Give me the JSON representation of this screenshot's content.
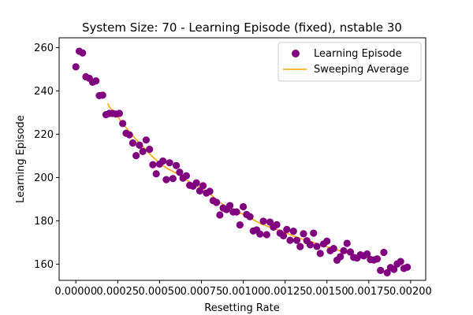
{
  "chart_data": {
    "type": "scatter",
    "title": "System Size: 70 - Learning Episode (fixed), nstable 30",
    "xlabel": "Resetting Rate",
    "ylabel": "Learning Episode",
    "xlim": [
      -0.0001,
      0.00209
    ],
    "ylim": [
      152.5,
      264.5
    ],
    "x_ticks": [
      0.0,
      0.00025,
      0.0005,
      0.00075,
      0.001,
      0.00125,
      0.0015,
      0.00175,
      0.002
    ],
    "x_tick_labels": [
      "0.00000",
      "0.00025",
      "0.00050",
      "0.00075",
      "0.00100",
      "0.00125",
      "0.00150",
      "0.00175",
      "0.00200"
    ],
    "y_ticks": [
      160,
      180,
      200,
      220,
      240,
      260
    ],
    "y_tick_labels": [
      "160",
      "180",
      "200",
      "220",
      "240",
      "260"
    ],
    "grid": false,
    "legend_position": "top-right",
    "series": [
      {
        "name": "Learning Episode",
        "kind": "scatter",
        "color": "#800080",
        "points": [
          [
            0.0,
            251.1
          ],
          [
            2e-05,
            258.3
          ],
          [
            4e-05,
            257.5
          ],
          [
            6e-05,
            246.5
          ],
          [
            8e-05,
            245.8
          ],
          [
            0.0001,
            244.0
          ],
          [
            0.00012,
            244.6
          ],
          [
            0.00014,
            237.8
          ],
          [
            0.00016,
            238.0
          ],
          [
            0.00018,
            229.0
          ],
          [
            0.0002,
            229.6
          ],
          [
            0.00022,
            229.6
          ],
          [
            0.00024,
            229.3
          ],
          [
            0.00026,
            229.6
          ],
          [
            0.00028,
            224.9
          ],
          [
            0.0003,
            220.4
          ],
          [
            0.00032,
            219.7
          ],
          [
            0.00034,
            215.9
          ],
          [
            0.00036,
            210.1
          ],
          [
            0.00038,
            214.9
          ],
          [
            0.0004,
            212.0
          ],
          [
            0.00042,
            217.3
          ],
          [
            0.00044,
            213.0
          ],
          [
            0.00046,
            205.9
          ],
          [
            0.00048,
            201.7
          ],
          [
            0.0005,
            206.2
          ],
          [
            0.00052,
            207.6
          ],
          [
            0.00054,
            199.0
          ],
          [
            0.00056,
            206.8
          ],
          [
            0.00058,
            199.5
          ],
          [
            0.0006,
            205.5
          ],
          [
            0.00062,
            202.4
          ],
          [
            0.00064,
            199.7
          ],
          [
            0.00066,
            200.8
          ],
          [
            0.00068,
            196.4
          ],
          [
            0.0007,
            196.0
          ],
          [
            0.00072,
            197.5
          ],
          [
            0.00074,
            193.8
          ],
          [
            0.00076,
            196.2
          ],
          [
            0.00078,
            192.8
          ],
          [
            0.0008,
            193.6
          ],
          [
            0.00082,
            189.3
          ],
          [
            0.00084,
            188.5
          ],
          [
            0.00086,
            182.7
          ],
          [
            0.00088,
            185.9
          ],
          [
            0.0009,
            185.2
          ],
          [
            0.00092,
            187.0
          ],
          [
            0.00094,
            184.1
          ],
          [
            0.00096,
            184.1
          ],
          [
            0.00098,
            178.1
          ],
          [
            0.001,
            186.5
          ],
          [
            0.00102,
            182.9
          ],
          [
            0.00104,
            181.9
          ],
          [
            0.00106,
            175.3
          ],
          [
            0.00108,
            175.8
          ],
          [
            0.0011,
            173.9
          ],
          [
            0.00112,
            179.8
          ],
          [
            0.00114,
            173.6
          ],
          [
            0.00116,
            179.4
          ],
          [
            0.00118,
            177.1
          ],
          [
            0.0012,
            178.2
          ],
          [
            0.00122,
            174.3
          ],
          [
            0.00124,
            173.1
          ],
          [
            0.00126,
            176.0
          ],
          [
            0.00128,
            171.0
          ],
          [
            0.0013,
            175.2
          ],
          [
            0.00132,
            171.0
          ],
          [
            0.00134,
            168.1
          ],
          [
            0.00136,
            174.0
          ],
          [
            0.00138,
            170.8
          ],
          [
            0.0014,
            168.9
          ],
          [
            0.00142,
            174.3
          ],
          [
            0.00144,
            168.2
          ],
          [
            0.00146,
            164.9
          ],
          [
            0.00148,
            169.3
          ],
          [
            0.0015,
            170.6
          ],
          [
            0.00152,
            166.2
          ],
          [
            0.00154,
            167.2
          ],
          [
            0.00156,
            161.8
          ],
          [
            0.00158,
            163.4
          ],
          [
            0.0016,
            166.2
          ],
          [
            0.00162,
            169.6
          ],
          [
            0.00164,
            165.6
          ],
          [
            0.00166,
            163.1
          ],
          [
            0.00168,
            162.8
          ],
          [
            0.0017,
            164.3
          ],
          [
            0.00172,
            163.8
          ],
          [
            0.00174,
            164.7
          ],
          [
            0.00176,
            162.1
          ],
          [
            0.00178,
            161.9
          ],
          [
            0.0018,
            162.4
          ],
          [
            0.00182,
            157.1
          ],
          [
            0.00184,
            165.4
          ],
          [
            0.00186,
            156.0
          ],
          [
            0.00188,
            158.4
          ],
          [
            0.0019,
            157.6
          ],
          [
            0.00192,
            160.1
          ],
          [
            0.00194,
            161.2
          ],
          [
            0.00196,
            158.0
          ],
          [
            0.00198,
            158.6
          ]
        ]
      },
      {
        "name": "Sweeping Average",
        "kind": "line",
        "color": "#FFA500",
        "points": [
          [
            0.00019,
            234.2
          ],
          [
            0.0002,
            232.6
          ],
          [
            0.00025,
            228.0
          ],
          [
            0.0003,
            223.0
          ],
          [
            0.00035,
            218.4
          ],
          [
            0.0004,
            214.3
          ],
          [
            0.00045,
            210.2
          ],
          [
            0.0005,
            206.5
          ],
          [
            0.00055,
            204.0
          ],
          [
            0.0006,
            202.0
          ],
          [
            0.00065,
            199.3
          ],
          [
            0.0007,
            197.0
          ],
          [
            0.00075,
            195.0
          ],
          [
            0.0008,
            192.5
          ],
          [
            0.00085,
            189.0
          ],
          [
            0.0009,
            186.5
          ],
          [
            0.00095,
            184.5
          ],
          [
            0.001,
            183.0
          ],
          [
            0.00105,
            181.0
          ],
          [
            0.0011,
            178.8
          ],
          [
            0.00115,
            177.3
          ],
          [
            0.0012,
            176.0
          ],
          [
            0.00125,
            174.6
          ],
          [
            0.0013,
            173.0
          ],
          [
            0.00135,
            171.6
          ],
          [
            0.0014,
            170.5
          ],
          [
            0.00145,
            169.2
          ],
          [
            0.0015,
            168.0
          ],
          [
            0.00155,
            166.8
          ],
          [
            0.0016,
            165.5
          ],
          [
            0.00165,
            164.5
          ],
          [
            0.0017,
            163.6
          ],
          [
            0.00175,
            163.0
          ],
          [
            0.0018,
            161.8
          ]
        ]
      }
    ]
  }
}
